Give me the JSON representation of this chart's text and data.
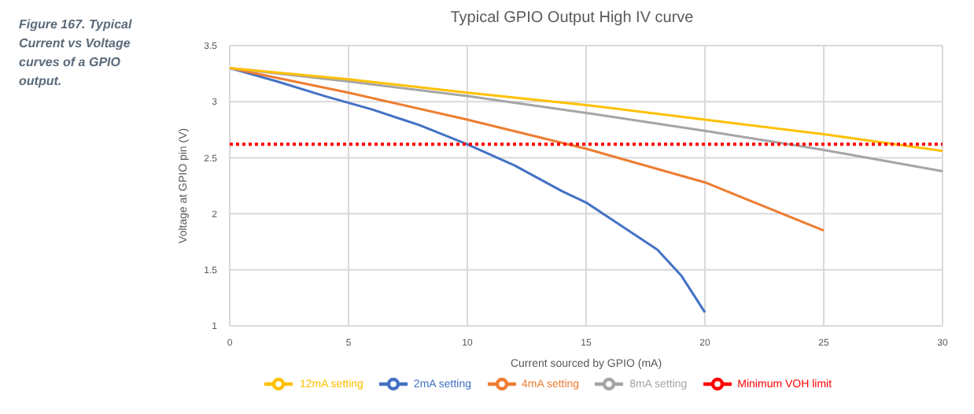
{
  "chart_data": {
    "type": "line",
    "title": "Typical GPIO Output High IV curve",
    "xlabel": "Current sourced by GPIO (mA)",
    "ylabel": "Voltage at GPIO pin (V)",
    "annotations": [
      "Figure 167. Typical Current vs Voltage curves of a GPIO output."
    ],
    "xlim": [
      0,
      30
    ],
    "xticks": [
      0,
      5,
      10,
      15,
      20,
      25,
      30
    ],
    "ylim": [
      1,
      3.5
    ],
    "yticks": [
      1,
      1.5,
      2,
      2.5,
      3,
      3.5
    ],
    "grid": true,
    "legend": "bottom",
    "marker": "none",
    "series": [
      {
        "name": "2mA setting",
        "color": "#4472c4",
        "x": [
          0,
          2,
          4,
          6,
          8,
          10,
          12,
          14,
          15,
          16,
          17,
          18,
          19,
          20
        ],
        "values": [
          3.3,
          3.18,
          3.05,
          2.93,
          2.79,
          2.62,
          2.43,
          2.2,
          2.1,
          1.96,
          1.82,
          1.68,
          1.45,
          1.12
        ]
      },
      {
        "name": "4mA setting",
        "color": "#ed7d31",
        "x": [
          0,
          5,
          10,
          15,
          20,
          25
        ],
        "values": [
          3.3,
          3.08,
          2.84,
          2.58,
          2.28,
          1.85
        ]
      },
      {
        "name": "8mA setting",
        "color": "#a5a5a5",
        "x": [
          0,
          5,
          10,
          15,
          20,
          25,
          30
        ],
        "values": [
          3.3,
          3.18,
          3.05,
          2.9,
          2.74,
          2.57,
          2.38
        ]
      },
      {
        "name": "12mA setting",
        "color": "#ffc000",
        "x": [
          0,
          5,
          10,
          15,
          20,
          25,
          30
        ],
        "values": [
          3.3,
          3.2,
          3.08,
          2.97,
          2.84,
          2.71,
          2.56
        ]
      },
      {
        "name": "Minimum VOH limit",
        "color": "#ff0000",
        "line_style": "dotted",
        "x": [
          0,
          30
        ],
        "values": [
          2.62,
          2.62
        ]
      }
    ]
  }
}
